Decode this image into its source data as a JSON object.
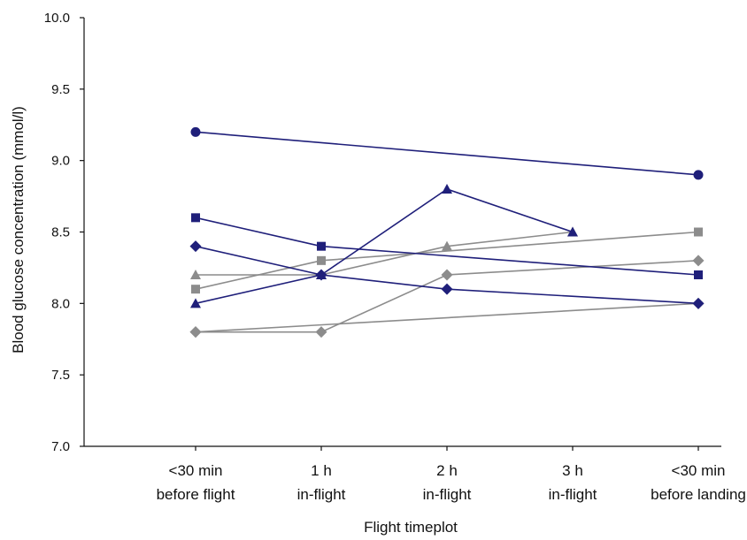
{
  "chart_data": {
    "type": "line",
    "title": "",
    "xlabel": "Flight timeplot",
    "ylabel": "Blood glucose concentration (mmol/l)",
    "ylim": [
      7.0,
      10.0
    ],
    "yticks": [
      "7.0",
      "7.5",
      "8.0",
      "8.5",
      "9.0",
      "9.5",
      "10.0"
    ],
    "grid": false,
    "legend": "none",
    "categories": [
      [
        "<30 min",
        "before flight"
      ],
      [
        "1 h",
        "in-flight"
      ],
      [
        "2 h",
        "in-flight"
      ],
      [
        "3 h",
        "in-flight"
      ],
      [
        "<30 min",
        "before landing"
      ]
    ],
    "series": [
      {
        "color": "#1f1f7a",
        "marker": "circle",
        "values": [
          9.2,
          null,
          null,
          null,
          8.9
        ]
      },
      {
        "color": "#1f1f7a",
        "marker": "square",
        "values": [
          8.6,
          8.4,
          null,
          null,
          8.2
        ]
      },
      {
        "color": "#1f1f7a",
        "marker": "diamond",
        "values": [
          8.4,
          8.2,
          8.1,
          null,
          8.0
        ]
      },
      {
        "color": "#1f1f7a",
        "marker": "triangle",
        "values": [
          8.0,
          8.2,
          8.8,
          8.5,
          null
        ]
      },
      {
        "color": "#8c8c8c",
        "marker": "triangle",
        "values": [
          8.2,
          8.2,
          8.4,
          8.5,
          null
        ]
      },
      {
        "color": "#8c8c8c",
        "marker": "square",
        "values": [
          8.1,
          8.3,
          null,
          null,
          8.5
        ]
      },
      {
        "color": "#8c8c8c",
        "marker": "diamond",
        "values": [
          7.8,
          7.8,
          8.2,
          null,
          8.3
        ]
      },
      {
        "color": "#8c8c8c",
        "marker": "diamond",
        "values": [
          7.8,
          null,
          null,
          null,
          8.0
        ]
      }
    ]
  }
}
